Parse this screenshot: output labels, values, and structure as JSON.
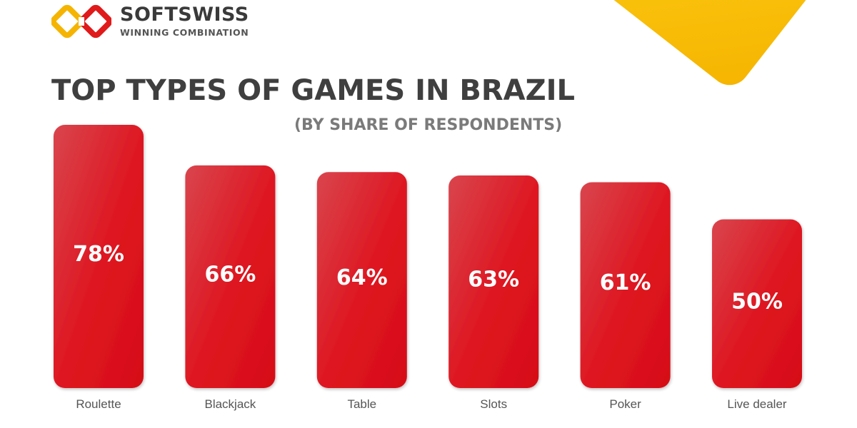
{
  "brand": {
    "name": "SOFTSWISS",
    "tagline": "WINNING COMBINATION",
    "colors": {
      "mark_yellow": "#f5b400",
      "mark_red": "#e01a1a",
      "deco_yellow": "#ffd21a"
    }
  },
  "header": {
    "title": "TOP TYPES OF GAMES IN BRAZIL",
    "subtitle": "(BY SHARE OF RESPONDENTS)"
  },
  "chart_data": {
    "type": "bar",
    "title": "TOP TYPES OF GAMES IN BRAZIL",
    "subtitle": "(BY SHARE OF RESPONDENTS)",
    "categories": [
      "Roulette",
      "Blackjack",
      "Table",
      "Slots",
      "Poker",
      "Live dealer"
    ],
    "values": [
      78,
      66,
      64,
      63,
      61,
      50
    ],
    "value_labels": [
      "78%",
      "66%",
      "64%",
      "63%",
      "61%",
      "50%"
    ],
    "unit": "%",
    "grid": false,
    "legend": "none",
    "bar_color": "#d9141c"
  }
}
